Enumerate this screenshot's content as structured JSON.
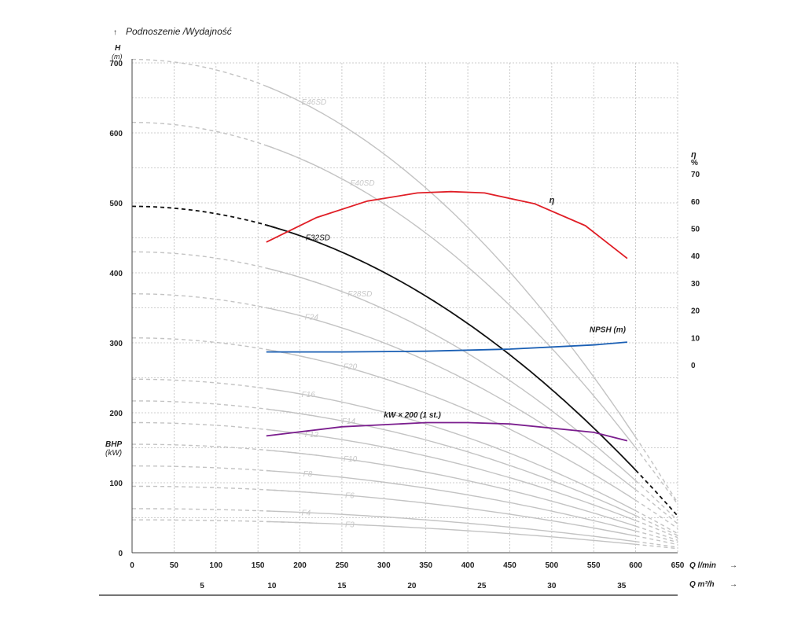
{
  "chart_data": {
    "type": "line",
    "title": "Podnoszenie /Wydajność",
    "y_axis": {
      "label": "H",
      "unit": "(m)",
      "min": 0,
      "max": 700,
      "ticks": [
        0,
        100,
        200,
        300,
        400,
        500,
        600,
        700
      ]
    },
    "x_axis": {
      "label": "Q l/min",
      "min": 0,
      "max": 650,
      "ticks": [
        0,
        50,
        100,
        150,
        200,
        250,
        300,
        350,
        400,
        450,
        500,
        550,
        600,
        650
      ]
    },
    "x_axis2": {
      "label": "Q m³/h",
      "ticks": [
        5,
        10,
        15,
        20,
        25,
        30,
        35
      ]
    },
    "eta_axis": {
      "label": "η",
      "unit": "%",
      "min": 0,
      "max": 70,
      "ticks": [
        0,
        10,
        20,
        30,
        40,
        50,
        60,
        70
      ]
    },
    "bhp_label": {
      "name": "BHP",
      "unit": "(kW)"
    },
    "grid": true,
    "pump_curves": [
      {
        "name": "E46SD",
        "h0": 705,
        "h600": 165,
        "highlight": false
      },
      {
        "name": "F40SD",
        "h0": 615,
        "h600": 150,
        "highlight": false
      },
      {
        "name": "F32SD",
        "h0": 495,
        "h600": 118,
        "highlight": true
      },
      {
        "name": "F28SD",
        "h0": 430,
        "h600": 103,
        "highlight": false
      },
      {
        "name": "F24",
        "h0": 370,
        "h600": 90,
        "highlight": false
      },
      {
        "name": "F20",
        "h0": 307,
        "h600": 75,
        "highlight": false
      },
      {
        "name": "F16",
        "h0": 248,
        "h600": 60,
        "highlight": false
      },
      {
        "name": "F14",
        "h0": 217,
        "h600": 53,
        "highlight": false
      },
      {
        "name": "F12",
        "h0": 186,
        "h600": 46,
        "highlight": false
      },
      {
        "name": "F10",
        "h0": 155,
        "h600": 38,
        "highlight": false
      },
      {
        "name": "F8",
        "h0": 124,
        "h600": 31,
        "highlight": false
      },
      {
        "name": "F6",
        "h0": 95,
        "h600": 24,
        "highlight": false
      },
      {
        "name": "F4",
        "h0": 63,
        "h600": 16,
        "highlight": false
      },
      {
        "name": "F3",
        "h0": 47,
        "h600": 12,
        "highlight": false
      }
    ],
    "efficiency": {
      "name": "η",
      "x": [
        160,
        220,
        280,
        340,
        380,
        420,
        480,
        540,
        590
      ],
      "y": [
        45,
        54,
        60,
        63,
        63.5,
        63,
        59,
        51,
        39
      ]
    },
    "npsh": {
      "name": "NPSH (m)",
      "x": [
        160,
        250,
        350,
        450,
        550,
        590
      ],
      "y": [
        287,
        287,
        288,
        291,
        297,
        301
      ]
    },
    "power": {
      "name": "kW × 200 (1 st.)",
      "x": [
        160,
        250,
        350,
        400,
        450,
        550,
        590
      ],
      "y": [
        167,
        180,
        186,
        186,
        184,
        172,
        160
      ]
    }
  }
}
